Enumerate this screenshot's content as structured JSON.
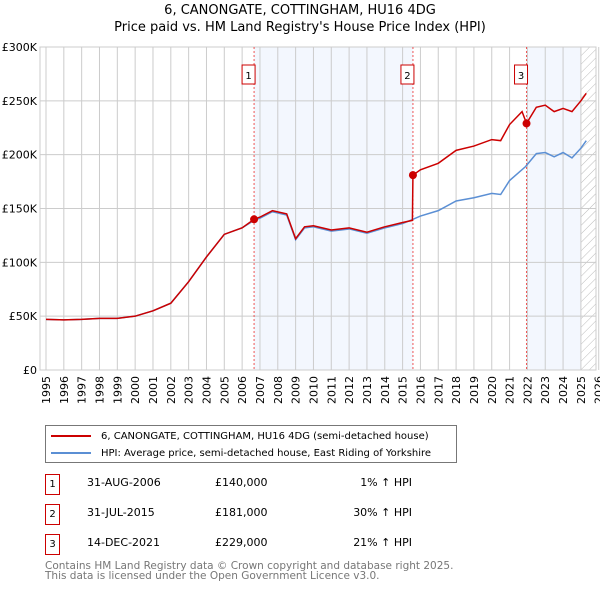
{
  "chart_data": {
    "type": "line",
    "title": "6, CANONGATE, COTTINGHAM, HU16 4DG",
    "subtitle": "Price paid vs. HM Land Registry's House Price Index (HPI)",
    "xlim": [
      1995,
      2026
    ],
    "ylim": [
      0,
      300000
    ],
    "x_ticks": [
      "1995",
      "1996",
      "1997",
      "1998",
      "1999",
      "2000",
      "2001",
      "2002",
      "2003",
      "2004",
      "2005",
      "2006",
      "2007",
      "2008",
      "2009",
      "2010",
      "2011",
      "2012",
      "2013",
      "2014",
      "2015",
      "2016",
      "2017",
      "2018",
      "2019",
      "2020",
      "2021",
      "2022",
      "2023",
      "2024",
      "2025",
      "2026"
    ],
    "y_ticks": [
      {
        "v": 0,
        "label": "£0"
      },
      {
        "v": 50000,
        "label": "£50K"
      },
      {
        "v": 100000,
        "label": "£100K"
      },
      {
        "v": 150000,
        "label": "£150K"
      },
      {
        "v": 200000,
        "label": "£200K"
      },
      {
        "v": 250000,
        "label": "£250K"
      },
      {
        "v": 300000,
        "label": "£300K"
      }
    ],
    "grid": true,
    "series": [
      {
        "name": "6, CANONGATE, COTTINGHAM, HU16 4DG (semi-detached house)",
        "color": "#cc0000",
        "x": [
          1995,
          1996,
          1997,
          1998,
          1999,
          2000,
          2001,
          2002,
          2003,
          2004,
          2005,
          2006,
          2006.67,
          2007,
          2007.7,
          2008.5,
          2009,
          2009.5,
          2010,
          2011,
          2012,
          2013,
          2014,
          2015,
          2015.55,
          2015.58,
          2016,
          2017,
          2018,
          2019,
          2020,
          2020.5,
          2021,
          2021.7,
          2021.95,
          2022.5,
          2023,
          2023.5,
          2024,
          2024.5,
          2025,
          2025.3
        ],
        "y": [
          47000,
          46500,
          47000,
          48000,
          48000,
          50000,
          55000,
          62000,
          82000,
          105000,
          126000,
          132000,
          140000,
          142000,
          148000,
          145000,
          122000,
          133000,
          134000,
          130000,
          132000,
          128000,
          133000,
          137000,
          139000,
          181000,
          186000,
          192000,
          204000,
          208000,
          214000,
          213000,
          228000,
          240000,
          229000,
          244000,
          246000,
          240000,
          243000,
          240000,
          250000,
          257000
        ]
      },
      {
        "name": "HPI: Average price, semi-detached house, East Riding of Yorkshire",
        "color": "#5b8fd4",
        "x": [
          1995,
          1996,
          1997,
          1998,
          1999,
          2000,
          2001,
          2002,
          2003,
          2004,
          2005,
          2006,
          2006.67,
          2007,
          2007.7,
          2008.5,
          2009,
          2009.5,
          2010,
          2011,
          2012,
          2013,
          2014,
          2015,
          2015.58,
          2016,
          2017,
          2018,
          2019,
          2020,
          2020.5,
          2021,
          2021.9,
          2022.5,
          2023,
          2023.5,
          2024,
          2024.5,
          2025,
          2025.3
        ],
        "y": [
          47000,
          46500,
          47000,
          48000,
          48000,
          50000,
          55000,
          62000,
          82000,
          105000,
          126000,
          132000,
          139000,
          141000,
          147000,
          144000,
          121000,
          132000,
          133000,
          129000,
          131000,
          127000,
          132000,
          136000,
          140000,
          143000,
          148000,
          157000,
          160000,
          164000,
          163000,
          176000,
          189000,
          201000,
          202000,
          198000,
          202000,
          197000,
          206000,
          213000
        ]
      }
    ],
    "sales": [
      {
        "id": "1",
        "date": "31-AUG-2006",
        "x": 2006.67,
        "price": "£140,000",
        "price_value": 140000,
        "hpi": "1% ↑ HPI"
      },
      {
        "id": "2",
        "date": "31-JUL-2015",
        "x": 2015.58,
        "price": "£181,000",
        "price_value": 181000,
        "hpi": "30% ↑ HPI"
      },
      {
        "id": "3",
        "date": "14-DEC-2021",
        "x": 2021.95,
        "price": "£229,000",
        "price_value": 229000,
        "hpi": "21% ↑ HPI"
      }
    ],
    "forecast_start": 2025.0
  },
  "footer": {
    "line1": "Contains HM Land Registry data © Crown copyright and database right 2025.",
    "line2": "This data is licensed under the Open Government Licence v3.0."
  }
}
